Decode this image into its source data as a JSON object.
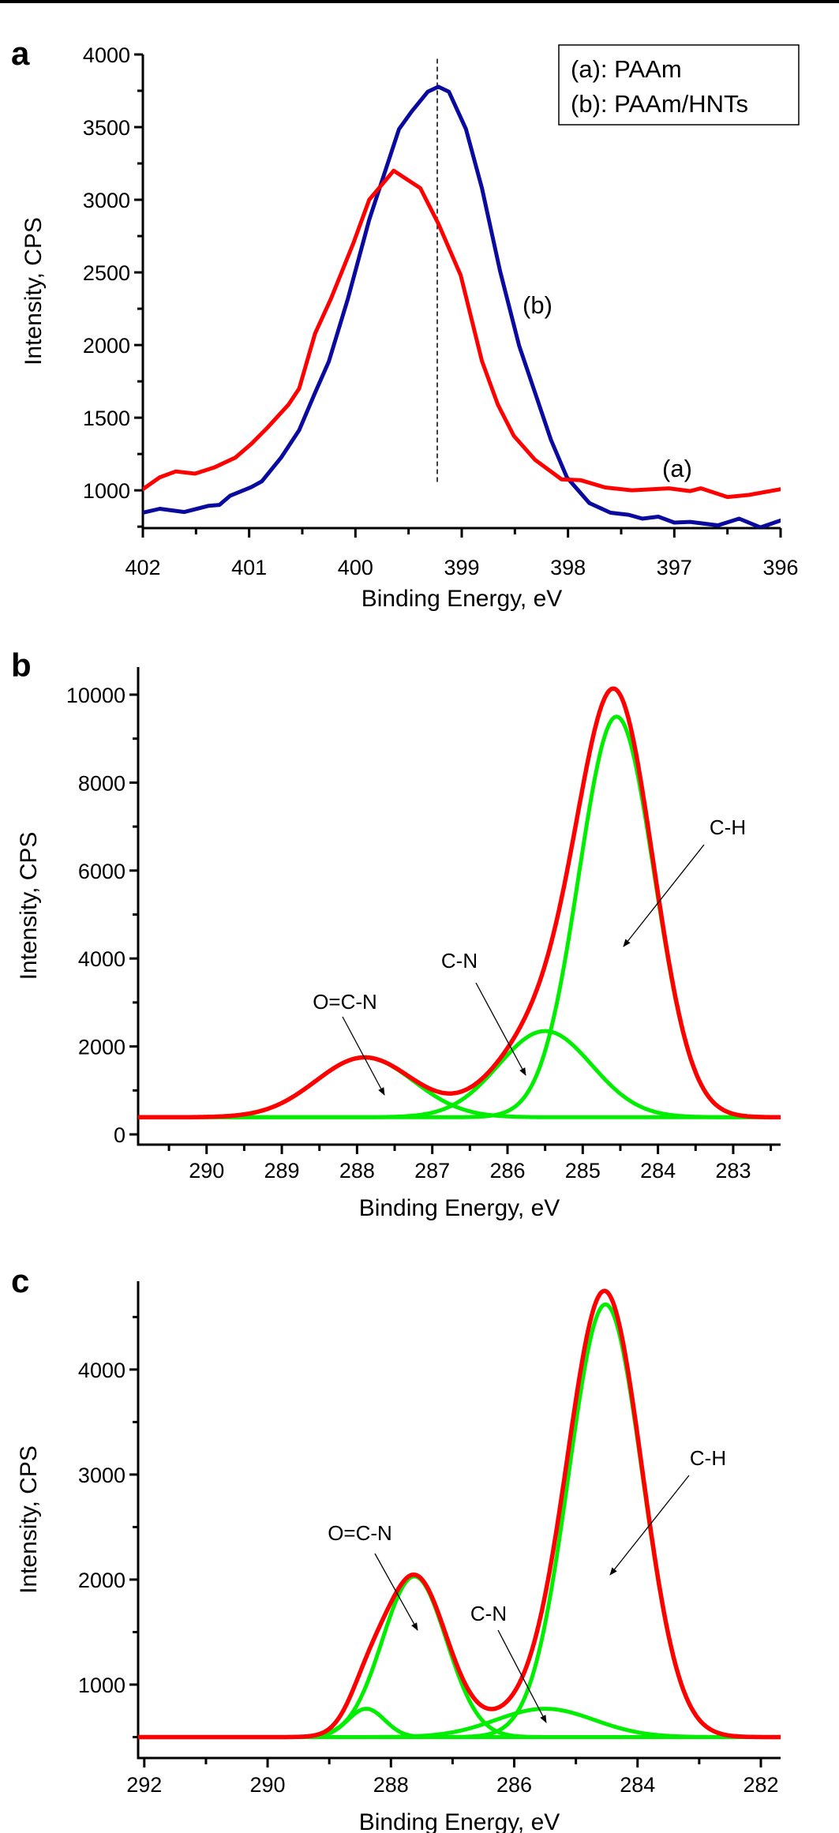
{
  "chart_data": [
    {
      "panel": "a",
      "type": "line",
      "xlabel": "Binding Energy, eV",
      "ylabel": "Intensity, CPS",
      "xlim": [
        402,
        396
      ],
      "ylim": [
        740,
        4000
      ],
      "xticks": [
        402,
        401,
        400,
        399,
        398,
        397,
        396
      ],
      "yticks": [
        1000,
        1500,
        2000,
        2500,
        3000,
        3500,
        4000
      ],
      "grid": false,
      "legend": {
        "position": "top-right",
        "entries": [
          "(a): PAAm",
          "(b): PAAm/HNTs"
        ]
      },
      "reference_line": {
        "style": "dashed",
        "x": 399.23,
        "y": [
          1055,
          3970
        ]
      },
      "series": [
        {
          "name": "(a): PAAm",
          "label": "(a)",
          "color": "#ff0000",
          "x": [
            402,
            401.84,
            401.69,
            401.51,
            401.33,
            401.13,
            400.98,
            400.83,
            400.63,
            400.53,
            400.38,
            400.23,
            400.02,
            399.87,
            399.64,
            399.39,
            399.22,
            399.01,
            398.81,
            398.66,
            398.51,
            398.31,
            398.06,
            397.88,
            397.65,
            397.4,
            397.05,
            396.85,
            396.75,
            396.5,
            396.3,
            396
          ],
          "y": [
            1008,
            1090,
            1130,
            1115,
            1157,
            1225,
            1320,
            1430,
            1590,
            1700,
            2080,
            2320,
            2700,
            3000,
            3200,
            3080,
            2835,
            2480,
            1890,
            1590,
            1375,
            1210,
            1075,
            1070,
            1020,
            1000,
            1014,
            995,
            1014,
            954,
            968,
            1008
          ]
        },
        {
          "name": "(b): PAAm/HNTs",
          "label": "(b)",
          "color": "#0a0a9e",
          "x": [
            402,
            401.84,
            401.61,
            401.38,
            401.28,
            401.18,
            400.98,
            400.88,
            400.7,
            400.53,
            400.38,
            400.25,
            400.07,
            399.87,
            399.59,
            399.47,
            399.32,
            399.22,
            399.12,
            398.96,
            398.81,
            398.64,
            398.46,
            398.31,
            398.16,
            398.01,
            397.8,
            397.6,
            397.43,
            397.3,
            397.15,
            397,
            396.85,
            396.59,
            396.39,
            396.19,
            396
          ],
          "y": [
            846,
            873,
            851,
            894,
            900,
            962,
            1022,
            1062,
            1225,
            1414,
            1672,
            1888,
            2321,
            2863,
            3486,
            3608,
            3743,
            3778,
            3743,
            3486,
            3080,
            2511,
            1996,
            1672,
            1347,
            1089,
            913,
            846,
            832,
            805,
            819,
            778,
            783,
            759,
            805,
            745,
            792
          ]
        }
      ]
    },
    {
      "panel": "b",
      "type": "line",
      "xlabel": "Binding Energy, eV",
      "ylabel": "Intensity, CPS",
      "xlim": [
        290.91,
        282.37
      ],
      "ylim": [
        -233,
        10628
      ],
      "xticks": [
        290,
        289,
        288,
        287,
        286,
        285,
        284,
        283
      ],
      "yticks": [
        0,
        2000,
        4000,
        6000,
        8000,
        10000
      ],
      "grid": false,
      "baseline": 390,
      "envelope_color": "#ff0000",
      "component_color": "#00ee00",
      "components": [
        {
          "label": "O=C-N",
          "center": 287.9,
          "peak": 1750,
          "fwhm": 1.53
        },
        {
          "label": "C-N",
          "center": 285.5,
          "peak": 2350,
          "fwhm": 1.46
        },
        {
          "label": "C-H",
          "center": 284.55,
          "peak": 9500,
          "fwhm": 1.18
        }
      ]
    },
    {
      "panel": "c",
      "type": "line",
      "xlabel": "Binding Energy, eV",
      "ylabel": "Intensity, CPS",
      "xlim": [
        292.1,
        281.68
      ],
      "ylim": [
        301,
        4841
      ],
      "xticks": [
        292,
        290,
        288,
        286,
        284,
        282
      ],
      "yticks": [
        1000,
        2000,
        3000,
        4000
      ],
      "grid": false,
      "baseline": 500,
      "envelope_color": "#ff0000",
      "component_color": "#00ee00",
      "components": [
        {
          "label": "",
          "center": 288.4,
          "peak": 770,
          "fwhm": 0.7
        },
        {
          "label": "O=C-N",
          "center": 287.62,
          "peak": 2030,
          "fwhm": 1.22
        },
        {
          "label": "C-N",
          "center": 285.5,
          "peak": 770,
          "fwhm": 1.88
        },
        {
          "label": "C-H",
          "center": 284.52,
          "peak": 4620,
          "fwhm": 1.41
        }
      ]
    }
  ]
}
